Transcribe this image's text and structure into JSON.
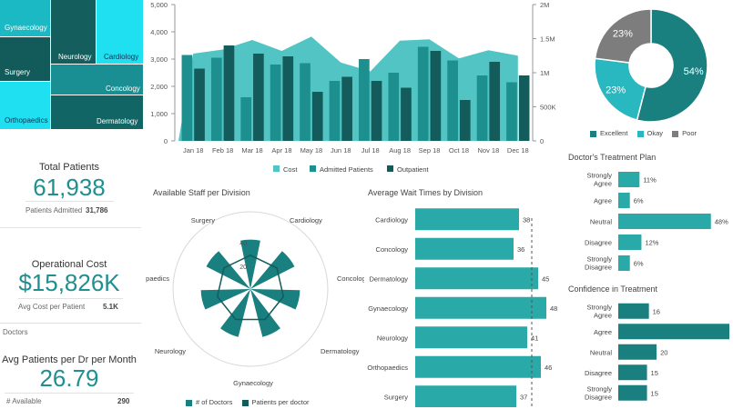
{
  "colors": {
    "teal_light": "#52c4c4",
    "teal_mid": "#2aa9a9",
    "teal_dark": "#1a7f7f",
    "teal_darker": "#145c5c",
    "cyan": "#1ee0f0",
    "gray": "#7d7d7d"
  },
  "treemap": {
    "cells": [
      "Gynaecology",
      "Neurology",
      "Cardiology",
      "Surgery",
      "Concology",
      "Orthopaedics",
      "Dermatology"
    ]
  },
  "main_chart": {
    "months": [
      "Jan 18",
      "Feb 18",
      "Mar 18",
      "Apr 18",
      "May 18",
      "Jun 18",
      "Jul 18",
      "Aug 18",
      "Sep 18",
      "Oct 18",
      "Nov 18",
      "Dec 18"
    ],
    "left_axis": [
      "5,000",
      "4,000",
      "3,000",
      "2,000",
      "1,000",
      "0"
    ],
    "right_axis": [
      "2M",
      "1.5M",
      "1M",
      "500K",
      "0"
    ],
    "legend": [
      "Cost",
      "Admitted Patients",
      "Outpatient"
    ]
  },
  "chart_data": [
    {
      "type": "bar",
      "categories": [
        "Jan 18",
        "Feb 18",
        "Mar 18",
        "Apr 18",
        "May 18",
        "Jun 18",
        "Jul 18",
        "Aug 18",
        "Sep 18",
        "Oct 18",
        "Nov 18",
        "Dec 18"
      ],
      "ylim": [
        0,
        5000
      ],
      "series": [
        {
          "name": "Cost",
          "type": "area",
          "axis": "right",
          "values": [
            1280000,
            1340000,
            1480000,
            1320000,
            1530000,
            1150000,
            1020000,
            1470000,
            1490000,
            1210000,
            1330000,
            1250000
          ]
        },
        {
          "name": "Admitted Patients",
          "values": [
            3150,
            3050,
            1600,
            2800,
            2850,
            2200,
            3000,
            2500,
            3450,
            2950,
            2400,
            2150
          ]
        },
        {
          "name": "Outpatient",
          "values": [
            2650,
            3500,
            3200,
            3100,
            1800,
            2350,
            2200,
            1950,
            3300,
            1500,
            2900,
            2400
          ]
        }
      ],
      "y2lim": [
        0,
        2000000
      ],
      "legend_position": "bottom"
    },
    {
      "type": "pie",
      "categories": [
        "Excellent",
        "Okay",
        "Poor"
      ],
      "values": [
        54,
        23,
        23
      ],
      "labels": [
        "54%",
        "23%",
        "23%"
      ],
      "legend_position": "bottom"
    },
    {
      "type": "bar",
      "title": "Available Staff per Division",
      "categories": [
        "Surgery",
        "Cardiology",
        "Concology",
        "Dermatology",
        "Gynaecology",
        "Neurology",
        "Orthopaedics"
      ],
      "series": [
        {
          "name": "# of Doctors",
          "values": [
            40,
            40,
            40,
            40,
            40,
            40,
            40
          ]
        },
        {
          "name": "Patients per doctor",
          "values": [
            20,
            20,
            20,
            20,
            20,
            20,
            20
          ]
        }
      ],
      "ticks": [
        "40",
        "20"
      ],
      "legend_position": "bottom"
    },
    {
      "type": "bar",
      "title": "Average Wait Times by Division",
      "categories": [
        "Cardiology",
        "Concology",
        "Dermatology",
        "Gynaecology",
        "Neurology",
        "Orthopaedics",
        "Surgery"
      ],
      "values": [
        38,
        36,
        45,
        48,
        41,
        46,
        37
      ]
    },
    {
      "type": "bar",
      "title": "Doctor's Treatment Plan",
      "categories": [
        "Strongly Agree",
        "Agree",
        "Neutral",
        "Disagree",
        "Strongly Disagree"
      ],
      "values": [
        11,
        6,
        48,
        12,
        6
      ],
      "labels": [
        "11%",
        "6%",
        "48%",
        "12%",
        "6%"
      ]
    },
    {
      "type": "bar",
      "title": "Confidence in Treatment",
      "categories": [
        "Strongly Agree",
        "Agree",
        "Neutral",
        "Disagree",
        "Strongly Disagree"
      ],
      "values": [
        16,
        58,
        20,
        15,
        15
      ],
      "labels": [
        "16",
        "",
        "20",
        "15",
        "15"
      ]
    }
  ],
  "kpis": {
    "total_patients": {
      "title": "Total Patients",
      "value": "61,938",
      "sub_label": "Patients Admitted",
      "sub_value": "31,786"
    },
    "operational_cost": {
      "title": "Operational Cost",
      "value": "$15,826K",
      "sub_label": "Avg Cost per Patient",
      "sub_value": "5.1K"
    },
    "doctors": {
      "section": "Doctors",
      "title": "Avg Patients per Dr per Month",
      "value": "26.79",
      "sub_label": "# Available",
      "sub_value": "290"
    }
  },
  "pie": {
    "legend": [
      "Excellent",
      "Okay",
      "Poor"
    ]
  },
  "staff": {
    "title": "Available Staff per Division",
    "legend": [
      "# of Doctors",
      "Patients per doctor"
    ],
    "ticks": [
      "40",
      "20"
    ]
  },
  "wait": {
    "title": "Average Wait Times by Division"
  },
  "plan": {
    "title": "Doctor's Treatment Plan"
  },
  "confidence": {
    "title": "Confidence in Treatment"
  }
}
